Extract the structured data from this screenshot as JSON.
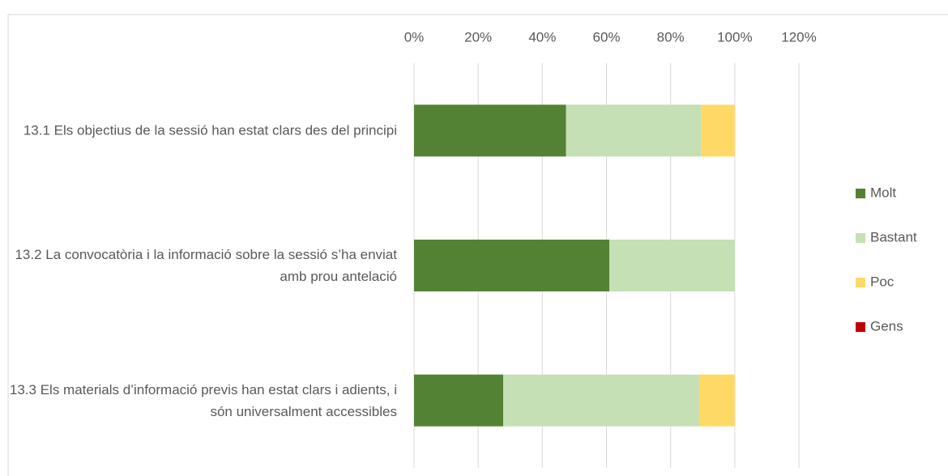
{
  "chart_data": {
    "type": "stacked_barh",
    "categories": [
      "13.1 Els objectius de la sessió han estat clars des del principi",
      "13.2 La convocatòria i la informació sobre la sessió s’ha enviat amb prou antelació",
      "13.3 Els materials d’informació previs han estat clars i adients, i són universalment accessibles"
    ],
    "series": [
      {
        "name": "Molt",
        "color": "#548235",
        "values": [
          47.4,
          60.9,
          27.8
        ]
      },
      {
        "name": "Bastant",
        "color": "#c5e0b4",
        "values": [
          42.1,
          39.1,
          61.1
        ]
      },
      {
        "name": "Poc",
        "color": "#ffd966",
        "values": [
          10.5,
          0,
          11.1
        ]
      },
      {
        "name": "Gens",
        "color": "#c00000",
        "values": [
          0,
          0,
          0
        ]
      }
    ],
    "xlim": [
      0,
      120
    ],
    "xticks": [
      {
        "value": 0,
        "label": "0%"
      },
      {
        "value": 20,
        "label": "20%"
      },
      {
        "value": 40,
        "label": "40%"
      },
      {
        "value": 60,
        "label": "60%"
      },
      {
        "value": 80,
        "label": "80%"
      },
      {
        "value": 100,
        "label": "100%"
      },
      {
        "value": 120,
        "label": "120%"
      }
    ],
    "grid": true,
    "legend": "right"
  }
}
